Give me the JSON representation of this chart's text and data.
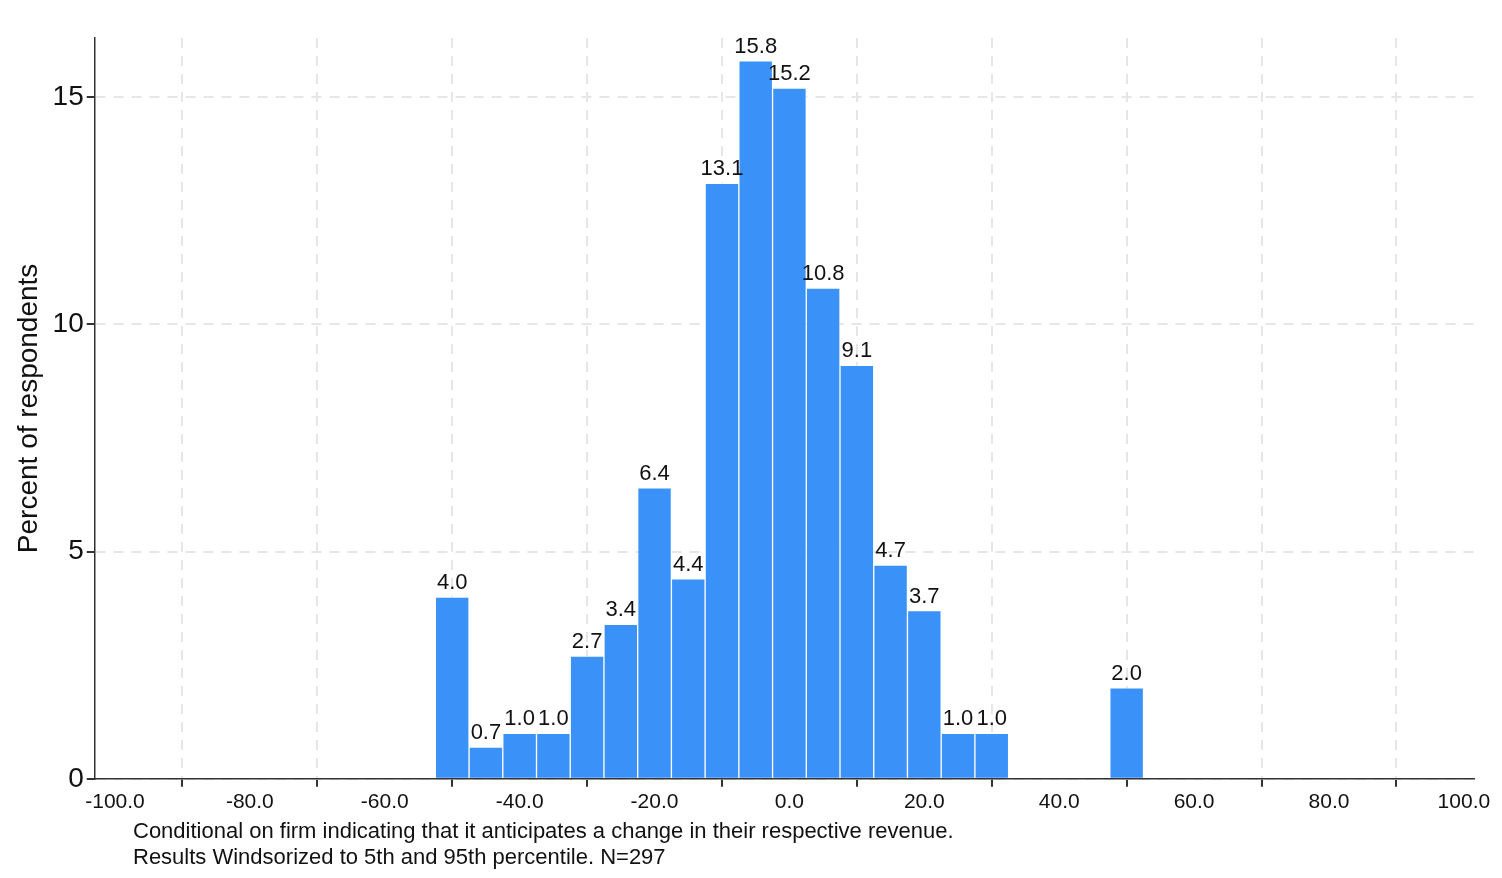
{
  "chart_data": {
    "type": "histogram",
    "ylabel": "Percent of respondents",
    "bins": [
      -52.5,
      -47.5,
      -42.5,
      -37.5,
      -32.5,
      -27.5,
      -22.5,
      -17.5,
      -12.5,
      -7.5,
      -2.5,
      2.5,
      7.5,
      12.5,
      17.5,
      22.5,
      27.5,
      32.5,
      37.5,
      42.5,
      47.5,
      52.5
    ],
    "values": [
      4.0,
      0.7,
      1.0,
      1.0,
      2.7,
      3.4,
      6.4,
      4.4,
      13.1,
      15.8,
      15.2,
      10.8,
      9.1,
      4.7,
      3.7,
      1.0,
      1.0,
      0,
      0,
      0,
      2.0
    ],
    "value_labels": [
      "4.0",
      "0.7",
      "1.0",
      "1.0",
      "2.7",
      "3.4",
      "6.4",
      "4.4",
      "13.1",
      "15.8",
      "15.2",
      "10.8",
      "9.1",
      "4.7",
      "3.7",
      "1.0",
      "1.0",
      null,
      null,
      null,
      "2.0"
    ],
    "color": "#3a91f8",
    "xlim": [
      -103,
      101.5
    ],
    "xticks": [
      {
        "value": -100,
        "label": "-100.0"
      },
      {
        "value": -80,
        "label": "-80.0"
      },
      {
        "value": -60,
        "label": "-60.0"
      },
      {
        "value": -40,
        "label": "-40.0"
      },
      {
        "value": -20,
        "label": "-20.0"
      },
      {
        "value": 0,
        "label": "0.0"
      },
      {
        "value": 20,
        "label": "20.0"
      },
      {
        "value": 40,
        "label": "40.0"
      },
      {
        "value": 60,
        "label": "60.0"
      },
      {
        "value": 80,
        "label": "80.0"
      },
      {
        "value": 100,
        "label": "100.0"
      }
    ],
    "ylim": [
      0,
      16.3
    ],
    "yticks": [
      0,
      5,
      10,
      15
    ],
    "grid": true,
    "legend": false,
    "annotations": [
      "Conditional on firm indicating that it anticipates a change in their respective revenue.",
      "Results Windsorized to 5th and 95th percentile. N=297"
    ]
  }
}
